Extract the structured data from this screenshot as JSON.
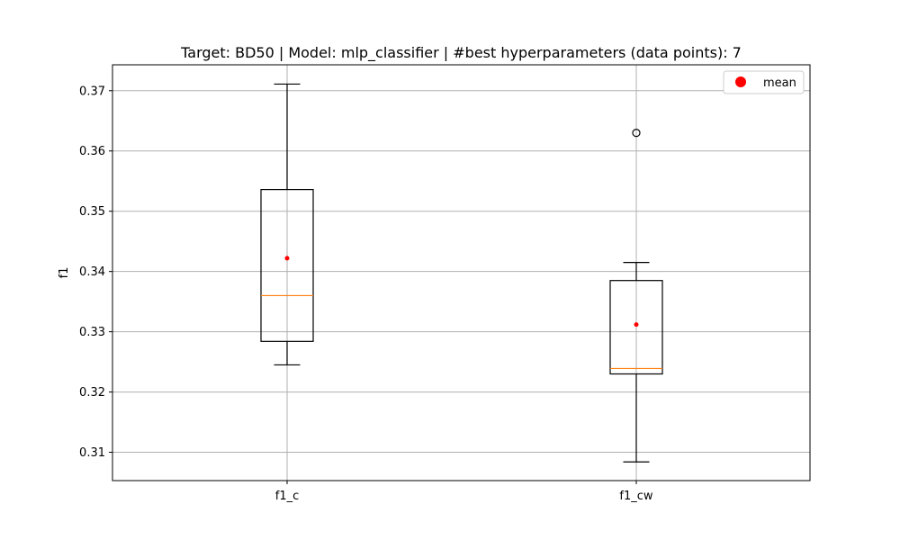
{
  "chart_data": {
    "type": "box",
    "title": "Target: BD50 | Model: mlp_classifier | #best hyperparameters (data points): 7",
    "xlabel": "",
    "ylabel": "f1",
    "ylim": [
      0.3053,
      0.3743
    ],
    "yticks": [
      0.31,
      0.32,
      0.33,
      0.34,
      0.35,
      0.36,
      0.37
    ],
    "ytick_labels": [
      "0.31",
      "0.32",
      "0.33",
      "0.34",
      "0.35",
      "0.36",
      "0.37"
    ],
    "categories": [
      "f1_c",
      "f1_cw"
    ],
    "grid": true,
    "legend": {
      "position": "top-right",
      "entries": [
        {
          "label": "mean",
          "color": "#ff0000",
          "marker": "circle"
        }
      ]
    },
    "colors": {
      "box": "#000000",
      "median": "#ff7f0e",
      "mean": "#ff0000",
      "grid": "#b0b0b0"
    },
    "boxes": [
      {
        "category": "f1_c",
        "whisker_low": 0.3245,
        "q1": 0.3284,
        "median": 0.336,
        "q3": 0.3536,
        "whisker_high": 0.3711,
        "mean": 0.3422,
        "outliers": []
      },
      {
        "category": "f1_cw",
        "whisker_low": 0.3084,
        "q1": 0.323,
        "median": 0.3239,
        "q3": 0.3385,
        "whisker_high": 0.3415,
        "mean": 0.3312,
        "outliers": [
          0.363
        ]
      }
    ]
  }
}
